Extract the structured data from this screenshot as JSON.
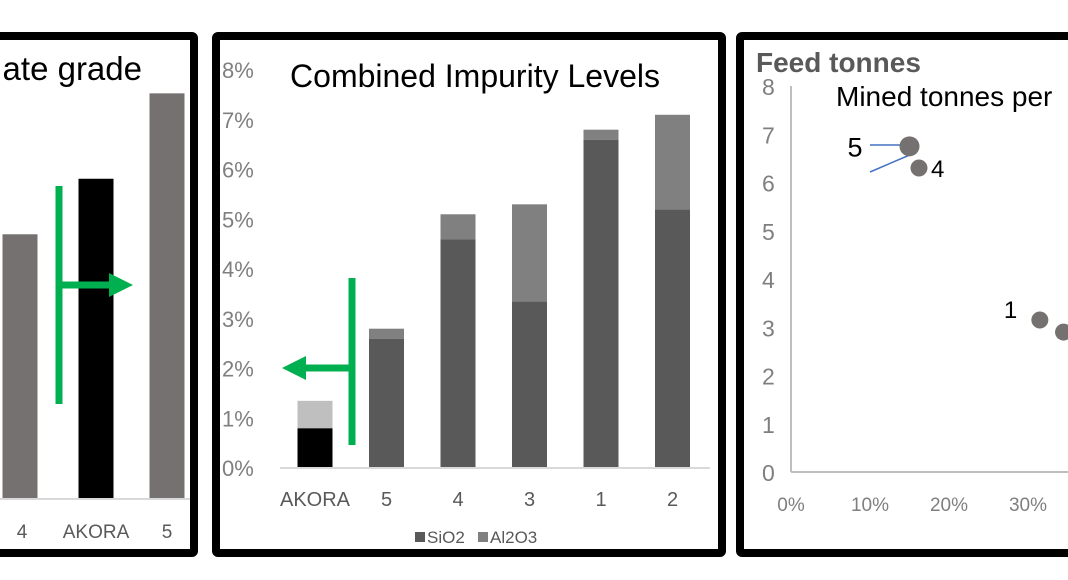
{
  "colors": {
    "grade_bar": "#767171",
    "akora_bar": "#000000",
    "sio2": "#595959",
    "al2o3": "#808080",
    "akora_sio2": "#000000",
    "akora_al2o3": "#bfbfbf",
    "arrow": "#00b050",
    "axis": "#bfbfbf",
    "tick_text": "#7f7f7f",
    "scatter_point": "#767171",
    "leader_line": "#4472c4"
  },
  "chart_data": [
    {
      "type": "bar",
      "title": "ate grade",
      "categories": [
        "4",
        "AKORA",
        "5"
      ],
      "values": [
        0.62,
        0.75,
        0.95
      ],
      "value_unit": "relative",
      "annotation": "arrow-right",
      "xlabel": "",
      "ylabel": ""
    },
    {
      "type": "bar",
      "stacked": true,
      "title": "Combined Impurity Levels",
      "categories": [
        "AKORA",
        "5",
        "4",
        "3",
        "1",
        "2"
      ],
      "series": [
        {
          "name": "SiO2",
          "values": [
            0.8,
            2.6,
            4.6,
            3.35,
            6.6,
            5.2
          ]
        },
        {
          "name": "Al2O3",
          "values": [
            0.55,
            0.2,
            0.5,
            1.95,
            0.2,
            1.9
          ]
        }
      ],
      "yticks": [
        "0%",
        "1%",
        "2%",
        "3%",
        "4%",
        "5%",
        "6%",
        "7%",
        "8%"
      ],
      "ylim": [
        0,
        8
      ],
      "legend": "bottom",
      "legend_entries": [
        "SiO2",
        "Al2O3"
      ],
      "annotation": "arrow-left",
      "xlabel": "",
      "ylabel": ""
    },
    {
      "type": "scatter",
      "title": "Mined tonnes per",
      "ylabel": "Feed tonnes",
      "yticks": [
        "0",
        "1",
        "2",
        "3",
        "4",
        "5",
        "6",
        "7",
        "8"
      ],
      "xticks": [
        "0%",
        "10%",
        "20%",
        "30%"
      ],
      "ylim": [
        0,
        8
      ],
      "xlim": [
        0,
        0.4
      ],
      "points": [
        {
          "label": "5",
          "x": 0.15,
          "y": 6.75
        },
        {
          "label": "4",
          "x": 0.162,
          "y": 6.3
        },
        {
          "label": "1",
          "x": 0.315,
          "y": 3.15
        },
        {
          "label": "",
          "x": 0.345,
          "y": 2.9
        }
      ]
    }
  ]
}
